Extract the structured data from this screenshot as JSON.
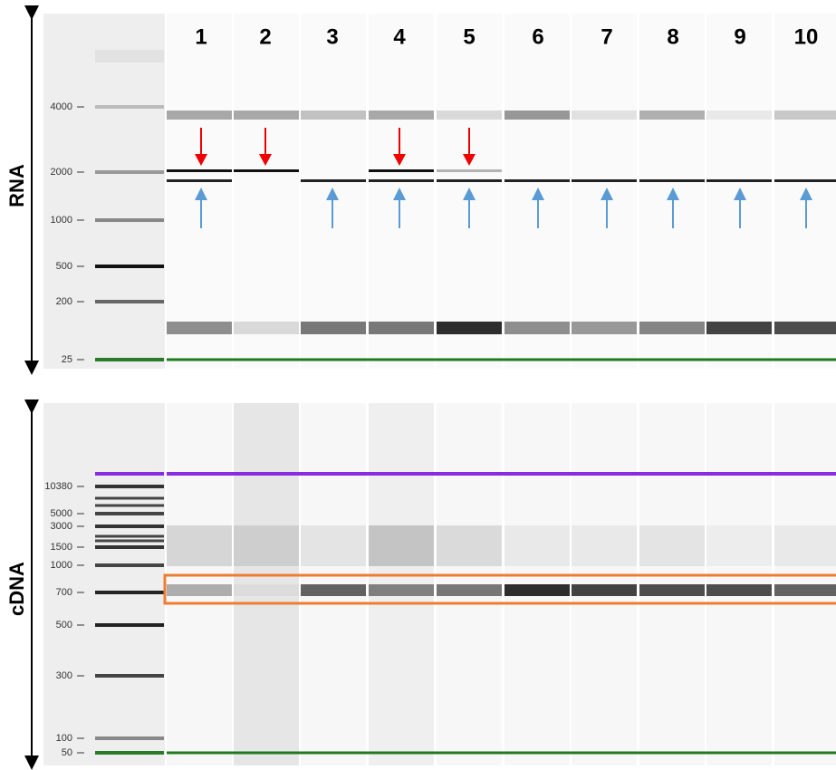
{
  "lanes": [
    "1",
    "2",
    "3",
    "4",
    "5",
    "6",
    "7",
    "8",
    "9",
    "10"
  ],
  "panels": [
    {
      "label": "RNA",
      "ticks": [
        "4000",
        "2000",
        "1000",
        "500",
        "200",
        "25"
      ]
    },
    {
      "label": "cDNA",
      "ticks": [
        "10380",
        "5000",
        "3000",
        "1500",
        "1000",
        "700",
        "500",
        "300",
        "100",
        "50"
      ]
    }
  ]
}
